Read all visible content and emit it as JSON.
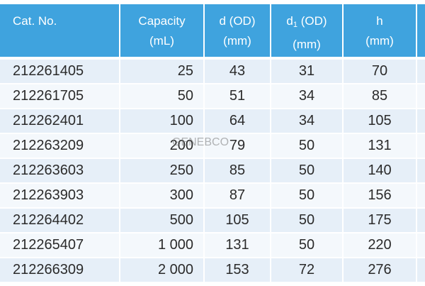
{
  "header": {
    "cat_no": "Cat. No.",
    "capacity_line1": "Capacity",
    "capacity_line2": "(mL)",
    "d_line1": "d (OD)",
    "d_line2": "(mm)",
    "d1_symbol": "d",
    "d1_sub": "1",
    "d1_rest": " (OD)",
    "d1_line2": "(mm)",
    "h_line1": "h",
    "h_line2": "(mm)"
  },
  "rows": [
    {
      "cat": "212261405",
      "capacity": "25",
      "d": "43",
      "d1": "31",
      "h": "70"
    },
    {
      "cat": "212261705",
      "capacity": "50",
      "d": "51",
      "d1": "34",
      "h": "85"
    },
    {
      "cat": "212262401",
      "capacity": "100",
      "d": "64",
      "d1": "34",
      "h": "105"
    },
    {
      "cat": "212263209",
      "capacity": "200",
      "d": "79",
      "d1": "50",
      "h": "131"
    },
    {
      "cat": "212263603",
      "capacity": "250",
      "d": "85",
      "d1": "50",
      "h": "140"
    },
    {
      "cat": "212263903",
      "capacity": "300",
      "d": "87",
      "d1": "50",
      "h": "156"
    },
    {
      "cat": "212264402",
      "capacity": "500",
      "d": "105",
      "d1": "50",
      "h": "175"
    },
    {
      "cat": "212265407",
      "capacity": "1 000",
      "d": "131",
      "d1": "50",
      "h": "220"
    },
    {
      "cat": "212266309",
      "capacity": "2 000",
      "d": "153",
      "d1": "72",
      "h": "276"
    }
  ],
  "watermark": "GENEBCO",
  "colors": {
    "header_bg": "#3fa3de",
    "row_odd": "#e6eff8",
    "row_even": "#f4f8fc"
  }
}
